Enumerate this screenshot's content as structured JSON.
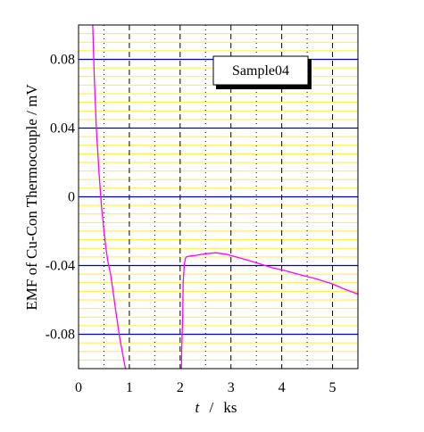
{
  "chart_data": {
    "type": "line",
    "title": "",
    "xlabel_var": "t",
    "xlabel_sep": "/",
    "xlabel_unit": "ks",
    "ylabel": "EMF of Cu-Con Thermocouple / mV",
    "xlim": [
      0,
      5.5
    ],
    "ylim": [
      -0.1,
      0.1
    ],
    "x_ticks": [
      0,
      1,
      2,
      3,
      4,
      5
    ],
    "x_tick_labels": [
      "0",
      "1",
      "2",
      "3",
      "4",
      "5"
    ],
    "y_ticks": [
      0.08,
      0.04,
      0,
      -0.04,
      -0.08
    ],
    "y_tick_labels": [
      "0.08",
      "0.04",
      "0",
      "-0.04",
      "-0.08"
    ],
    "grid": true,
    "annotation": "Sample04",
    "colors": {
      "series": "#ff00ff",
      "major_grid": "#0000cc",
      "minor_grid": "#ffee33",
      "vertical_grid": "#000000"
    },
    "series": [
      {
        "x": [
          0.28,
          0.31,
          0.35,
          0.4,
          0.45,
          0.5,
          0.54,
          0.58,
          0.63,
          0.68,
          0.72,
          0.76,
          0.81,
          0.86,
          0.91,
          0.96
        ],
        "y": [
          0.1,
          0.07,
          0.04,
          0.015,
          -0.005,
          -0.02,
          -0.03,
          -0.038,
          -0.045,
          -0.055,
          -0.064,
          -0.072,
          -0.082,
          -0.09,
          -0.098,
          -0.106
        ]
      },
      {
        "x": [
          2.02,
          2.03,
          2.05,
          2.06,
          2.08,
          2.1,
          2.12,
          2.2,
          2.3,
          2.5,
          2.7,
          2.9,
          3.2,
          3.5,
          3.8,
          4.1,
          4.4,
          4.7,
          5.0,
          5.2,
          5.5
        ],
        "y": [
          -0.106,
          -0.09,
          -0.07,
          -0.05,
          -0.04,
          -0.036,
          -0.035,
          -0.034,
          -0.0335,
          -0.033,
          -0.033,
          -0.034,
          -0.036,
          -0.038,
          -0.0405,
          -0.043,
          -0.046,
          -0.0485,
          -0.051,
          -0.053,
          -0.056
        ]
      }
    ]
  }
}
